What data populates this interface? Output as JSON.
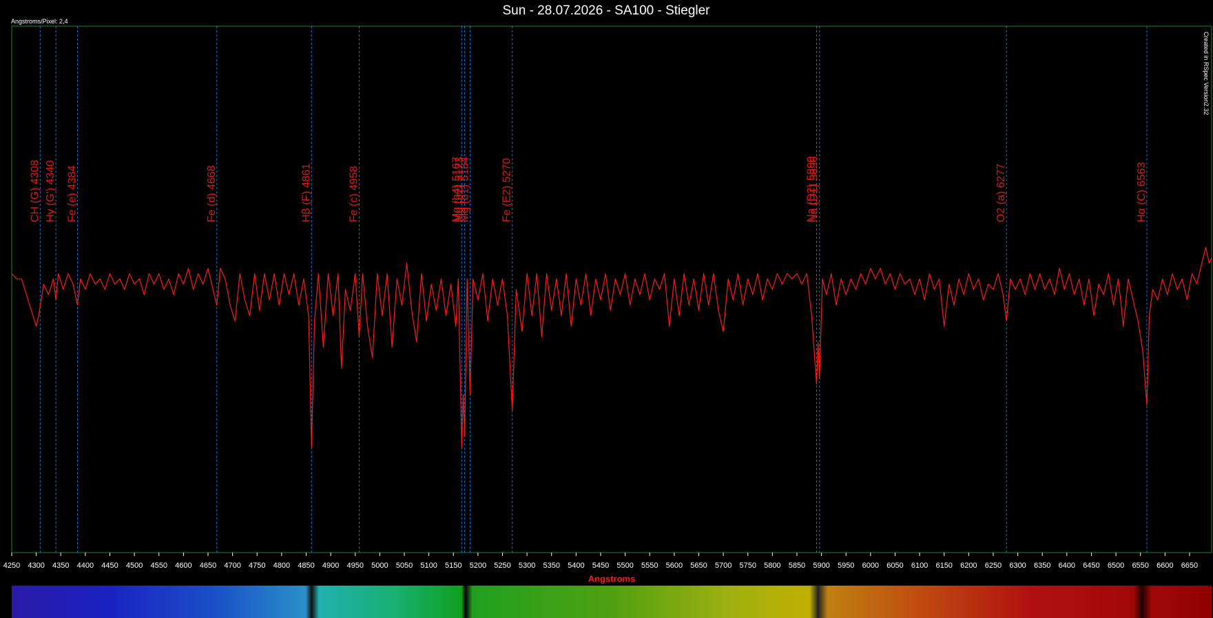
{
  "chart_data": {
    "type": "line",
    "title": "Sun - 28.07.2026 - SA100 - Stiegler",
    "subtitle": "Angstroms/Pixel: 2,4",
    "annotation": "Created in RSpec Version2.32",
    "x_label": "Angstroms",
    "color": "#ff1a1a",
    "marker_color": "#1e78c8",
    "xlim": [
      4250,
      6695
    ],
    "ylim": [
      0,
      1
    ],
    "xticks": [
      4250,
      4300,
      4350,
      4400,
      4450,
      4500,
      4550,
      4600,
      4650,
      4700,
      4750,
      4800,
      4850,
      4900,
      4950,
      5000,
      5050,
      5100,
      5150,
      5200,
      5250,
      5300,
      5350,
      5400,
      5450,
      5500,
      5550,
      5600,
      5650,
      5700,
      5750,
      5800,
      5850,
      5900,
      5950,
      6000,
      6050,
      6100,
      6150,
      6200,
      6250,
      6300,
      6350,
      6400,
      6450,
      6500,
      6550,
      6600,
      6650
    ],
    "lines": [
      {
        "label": "CH (G)  4308",
        "x": 4308
      },
      {
        "label": "Hγ (G')  4340",
        "x": 4340
      },
      {
        "label": "Fe (e)  4384",
        "x": 4384
      },
      {
        "label": "Fe (d)  4668",
        "x": 4668
      },
      {
        "label": "Hβ (F)  4861",
        "x": 4861
      },
      {
        "label": "Fe (c)  4958",
        "x": 4958
      },
      {
        "label": "Mg (b4)  5167",
        "x": 5167
      },
      {
        "label": "Mg (b2)  5173",
        "x": 5173
      },
      {
        "label": "Mg (b1)  5184",
        "x": 5184
      },
      {
        "label": "Fe (E2)  5270",
        "x": 5270
      },
      {
        "label": "Na (D2)  5890",
        "x": 5890
      },
      {
        "label": "Na (D1)  5896",
        "x": 5896
      },
      {
        "label": "O2 (a)  6277",
        "x": 6277
      },
      {
        "label": "Hα (C)  6563",
        "x": 6563
      }
    ],
    "x": [
      4250,
      4260,
      4270,
      4280,
      4290,
      4300,
      4305,
      4315,
      4325,
      4335,
      4340,
      4345,
      4355,
      4365,
      4375,
      4384,
      4390,
      4400,
      4410,
      4420,
      4430,
      4440,
      4450,
      4460,
      4470,
      4480,
      4490,
      4500,
      4510,
      4520,
      4530,
      4540,
      4550,
      4560,
      4570,
      4580,
      4590,
      4600,
      4610,
      4620,
      4630,
      4640,
      4650,
      4660,
      4668,
      4675,
      4685,
      4695,
      4705,
      4715,
      4725,
      4735,
      4745,
      4755,
      4765,
      4775,
      4785,
      4795,
      4805,
      4815,
      4825,
      4835,
      4845,
      4855,
      4861,
      4867,
      4875,
      4885,
      4895,
      4905,
      4915,
      4922,
      4930,
      4940,
      4950,
      4958,
      4965,
      4975,
      4985,
      4995,
      5005,
      5015,
      5025,
      5035,
      5045,
      5055,
      5065,
      5075,
      5085,
      5095,
      5105,
      5115,
      5125,
      5135,
      5145,
      5155,
      5160,
      5167,
      5170,
      5173,
      5178,
      5184,
      5190,
      5200,
      5210,
      5220,
      5230,
      5240,
      5250,
      5260,
      5270,
      5278,
      5290,
      5300,
      5310,
      5320,
      5330,
      5340,
      5350,
      5360,
      5370,
      5380,
      5390,
      5400,
      5410,
      5420,
      5430,
      5440,
      5450,
      5460,
      5470,
      5480,
      5490,
      5500,
      5510,
      5520,
      5530,
      5540,
      5550,
      5560,
      5570,
      5580,
      5590,
      5600,
      5610,
      5620,
      5630,
      5640,
      5650,
      5660,
      5670,
      5680,
      5690,
      5700,
      5710,
      5720,
      5730,
      5740,
      5750,
      5760,
      5770,
      5780,
      5790,
      5800,
      5810,
      5820,
      5830,
      5840,
      5850,
      5860,
      5870,
      5880,
      5890,
      5893,
      5896,
      5902,
      5910,
      5920,
      5930,
      5940,
      5950,
      5960,
      5970,
      5980,
      5990,
      6000,
      6010,
      6020,
      6030,
      6040,
      6050,
      6060,
      6070,
      6080,
      6090,
      6100,
      6110,
      6120,
      6130,
      6140,
      6150,
      6160,
      6170,
      6180,
      6190,
      6200,
      6210,
      6220,
      6230,
      6240,
      6250,
      6260,
      6270,
      6277,
      6285,
      6295,
      6305,
      6315,
      6325,
      6335,
      6345,
      6355,
      6365,
      6375,
      6385,
      6395,
      6405,
      6415,
      6425,
      6435,
      6445,
      6455,
      6465,
      6475,
      6485,
      6495,
      6505,
      6515,
      6525,
      6535,
      6545,
      6555,
      6563,
      6568,
      6575,
      6585,
      6595,
      6605,
      6615,
      6625,
      6635,
      6645,
      6655,
      6665,
      6675,
      6683,
      6690,
      6695
    ],
    "values": [
      0.53,
      0.52,
      0.52,
      0.49,
      0.46,
      0.43,
      0.45,
      0.51,
      0.49,
      0.52,
      0.48,
      0.53,
      0.5,
      0.53,
      0.51,
      0.47,
      0.52,
      0.5,
      0.53,
      0.51,
      0.52,
      0.5,
      0.53,
      0.51,
      0.52,
      0.5,
      0.53,
      0.51,
      0.52,
      0.49,
      0.53,
      0.51,
      0.53,
      0.5,
      0.52,
      0.49,
      0.53,
      0.51,
      0.54,
      0.5,
      0.53,
      0.51,
      0.54,
      0.5,
      0.47,
      0.54,
      0.52,
      0.47,
      0.44,
      0.53,
      0.48,
      0.45,
      0.53,
      0.46,
      0.53,
      0.48,
      0.53,
      0.47,
      0.53,
      0.49,
      0.53,
      0.47,
      0.52,
      0.45,
      0.2,
      0.44,
      0.53,
      0.39,
      0.53,
      0.45,
      0.53,
      0.35,
      0.5,
      0.46,
      0.53,
      0.41,
      0.53,
      0.43,
      0.37,
      0.53,
      0.45,
      0.53,
      0.39,
      0.52,
      0.47,
      0.55,
      0.46,
      0.4,
      0.53,
      0.44,
      0.51,
      0.46,
      0.52,
      0.45,
      0.51,
      0.43,
      0.52,
      0.2,
      0.3,
      0.22,
      0.52,
      0.3,
      0.52,
      0.48,
      0.53,
      0.44,
      0.52,
      0.47,
      0.52,
      0.45,
      0.27,
      0.5,
      0.42,
      0.53,
      0.45,
      0.53,
      0.41,
      0.53,
      0.46,
      0.52,
      0.45,
      0.53,
      0.43,
      0.52,
      0.47,
      0.53,
      0.45,
      0.52,
      0.48,
      0.53,
      0.46,
      0.52,
      0.49,
      0.53,
      0.47,
      0.52,
      0.49,
      0.53,
      0.48,
      0.52,
      0.5,
      0.53,
      0.43,
      0.52,
      0.45,
      0.53,
      0.47,
      0.52,
      0.46,
      0.53,
      0.47,
      0.53,
      0.46,
      0.42,
      0.52,
      0.48,
      0.53,
      0.47,
      0.52,
      0.49,
      0.53,
      0.48,
      0.52,
      0.5,
      0.53,
      0.51,
      0.53,
      0.52,
      0.53,
      0.51,
      0.53,
      0.45,
      0.32,
      0.4,
      0.33,
      0.52,
      0.49,
      0.53,
      0.47,
      0.52,
      0.49,
      0.52,
      0.5,
      0.53,
      0.51,
      0.54,
      0.52,
      0.54,
      0.51,
      0.53,
      0.5,
      0.53,
      0.51,
      0.52,
      0.49,
      0.52,
      0.48,
      0.53,
      0.5,
      0.52,
      0.43,
      0.51,
      0.47,
      0.52,
      0.49,
      0.53,
      0.5,
      0.52,
      0.48,
      0.51,
      0.5,
      0.53,
      0.49,
      0.44,
      0.52,
      0.5,
      0.52,
      0.49,
      0.53,
      0.5,
      0.53,
      0.5,
      0.52,
      0.49,
      0.54,
      0.5,
      0.53,
      0.49,
      0.52,
      0.47,
      0.52,
      0.45,
      0.51,
      0.49,
      0.53,
      0.47,
      0.52,
      0.43,
      0.52,
      0.48,
      0.44,
      0.38,
      0.28,
      0.45,
      0.5,
      0.48,
      0.52,
      0.49,
      0.53,
      0.5,
      0.52,
      0.48,
      0.53,
      0.51,
      0.55,
      0.58,
      0.55,
      0.56
    ]
  }
}
